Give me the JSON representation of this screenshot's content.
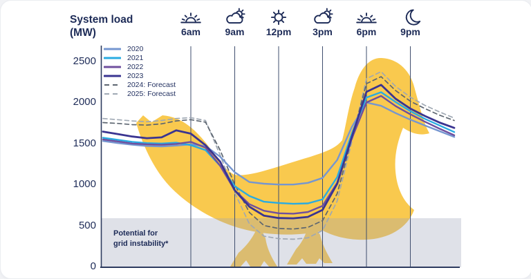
{
  "header": {
    "title_line1": "System load",
    "title_line2": "(MW)"
  },
  "chart_data": {
    "type": "line",
    "title": "System load (MW)",
    "x_unit": "hour-of-day",
    "x_range_hours": [
      0,
      24
    ],
    "ylim": [
      0,
      2600
    ],
    "ylabel": "System load (MW)",
    "grid": "vertical-only",
    "legend_position": "top-left",
    "y_ticks": [
      2500,
      2000,
      1500,
      1000,
      500,
      0
    ],
    "x_gridlines": [
      {
        "hour": 6,
        "label": "6am",
        "icon": "sunrise-icon"
      },
      {
        "hour": 9,
        "label": "9am",
        "icon": "cloud-sun-icon"
      },
      {
        "hour": 12,
        "label": "12pm",
        "icon": "sun-icon"
      },
      {
        "hour": 15,
        "label": "3pm",
        "icon": "cloud-sun-icon"
      },
      {
        "hour": 18,
        "label": "6pm",
        "icon": "sunset-icon"
      },
      {
        "hour": 21,
        "label": "9pm",
        "icon": "moon-icon"
      }
    ],
    "hours": [
      0,
      1,
      2,
      3,
      4,
      5,
      6,
      7,
      8,
      9,
      10,
      11,
      12,
      13,
      14,
      15,
      16,
      17,
      18,
      19,
      20,
      21,
      22,
      23,
      24
    ],
    "series": [
      {
        "name": "2025 Forecast",
        "label": "2025: Forecast",
        "color": "#9fa8b3",
        "dash": true,
        "width": 1.7,
        "values": [
          1805,
          1790,
          1775,
          1765,
          1780,
          1805,
          1815,
          1780,
          1360,
          900,
          520,
          370,
          340,
          333,
          350,
          440,
          800,
          1520,
          2290,
          2375,
          2195,
          2065,
          1965,
          1885,
          1810
        ]
      },
      {
        "name": "2024 Forecast",
        "label": "2024: Forecast",
        "color": "#5c6570",
        "dash": true,
        "width": 1.7,
        "values": [
          1755,
          1745,
          1730,
          1725,
          1740,
          1775,
          1790,
          1760,
          1420,
          1000,
          660,
          500,
          465,
          458,
          478,
          560,
          890,
          1560,
          2230,
          2315,
          2145,
          2015,
          1925,
          1845,
          1780
        ]
      },
      {
        "name": "2020",
        "label": "2020",
        "color": "#7596d0",
        "dash": false,
        "width": 2.4,
        "values": [
          1530,
          1505,
          1485,
          1470,
          1465,
          1475,
          1490,
          1470,
          1340,
          1150,
          1030,
          1010,
          1000,
          1000,
          1020,
          1080,
          1300,
          1700,
          2000,
          1960,
          1870,
          1790,
          1720,
          1650,
          1580
        ]
      },
      {
        "name": "2021",
        "label": "2021",
        "color": "#29abe2",
        "dash": false,
        "width": 2.4,
        "values": [
          1570,
          1545,
          1520,
          1505,
          1500,
          1510,
          1480,
          1420,
          1230,
          980,
          860,
          790,
          775,
          765,
          770,
          820,
          1090,
          1620,
          2060,
          2125,
          2005,
          1895,
          1800,
          1720,
          1640
        ]
      },
      {
        "name": "2022",
        "label": "2022",
        "color": "#6f4f9e",
        "dash": false,
        "width": 2.4,
        "values": [
          1550,
          1525,
          1500,
          1490,
          1485,
          1495,
          1520,
          1450,
          1230,
          930,
          760,
          680,
          650,
          645,
          665,
          740,
          1020,
          1560,
          2000,
          2080,
          1955,
          1855,
          1765,
          1680,
          1600
        ]
      },
      {
        "name": "2023",
        "label": "2023",
        "color": "#3a3491",
        "dash": false,
        "width": 2.8,
        "values": [
          1645,
          1615,
          1585,
          1565,
          1575,
          1660,
          1620,
          1480,
          1280,
          930,
          730,
          620,
          592,
          588,
          605,
          690,
          1010,
          1580,
          2130,
          2215,
          2045,
          1925,
          1835,
          1755,
          1690
        ]
      }
    ],
    "annotations": {
      "instability_band": {
        "label_line1": "Potential for",
        "label_line2": "grid instability*",
        "y_max_mw": 590,
        "color": "#9aa2b8"
      }
    },
    "duck_color": "#f9c94e",
    "axis_color": "#2c3a5e",
    "gridline_color": "#3f4e6e",
    "text_color": "#1d2b57"
  }
}
